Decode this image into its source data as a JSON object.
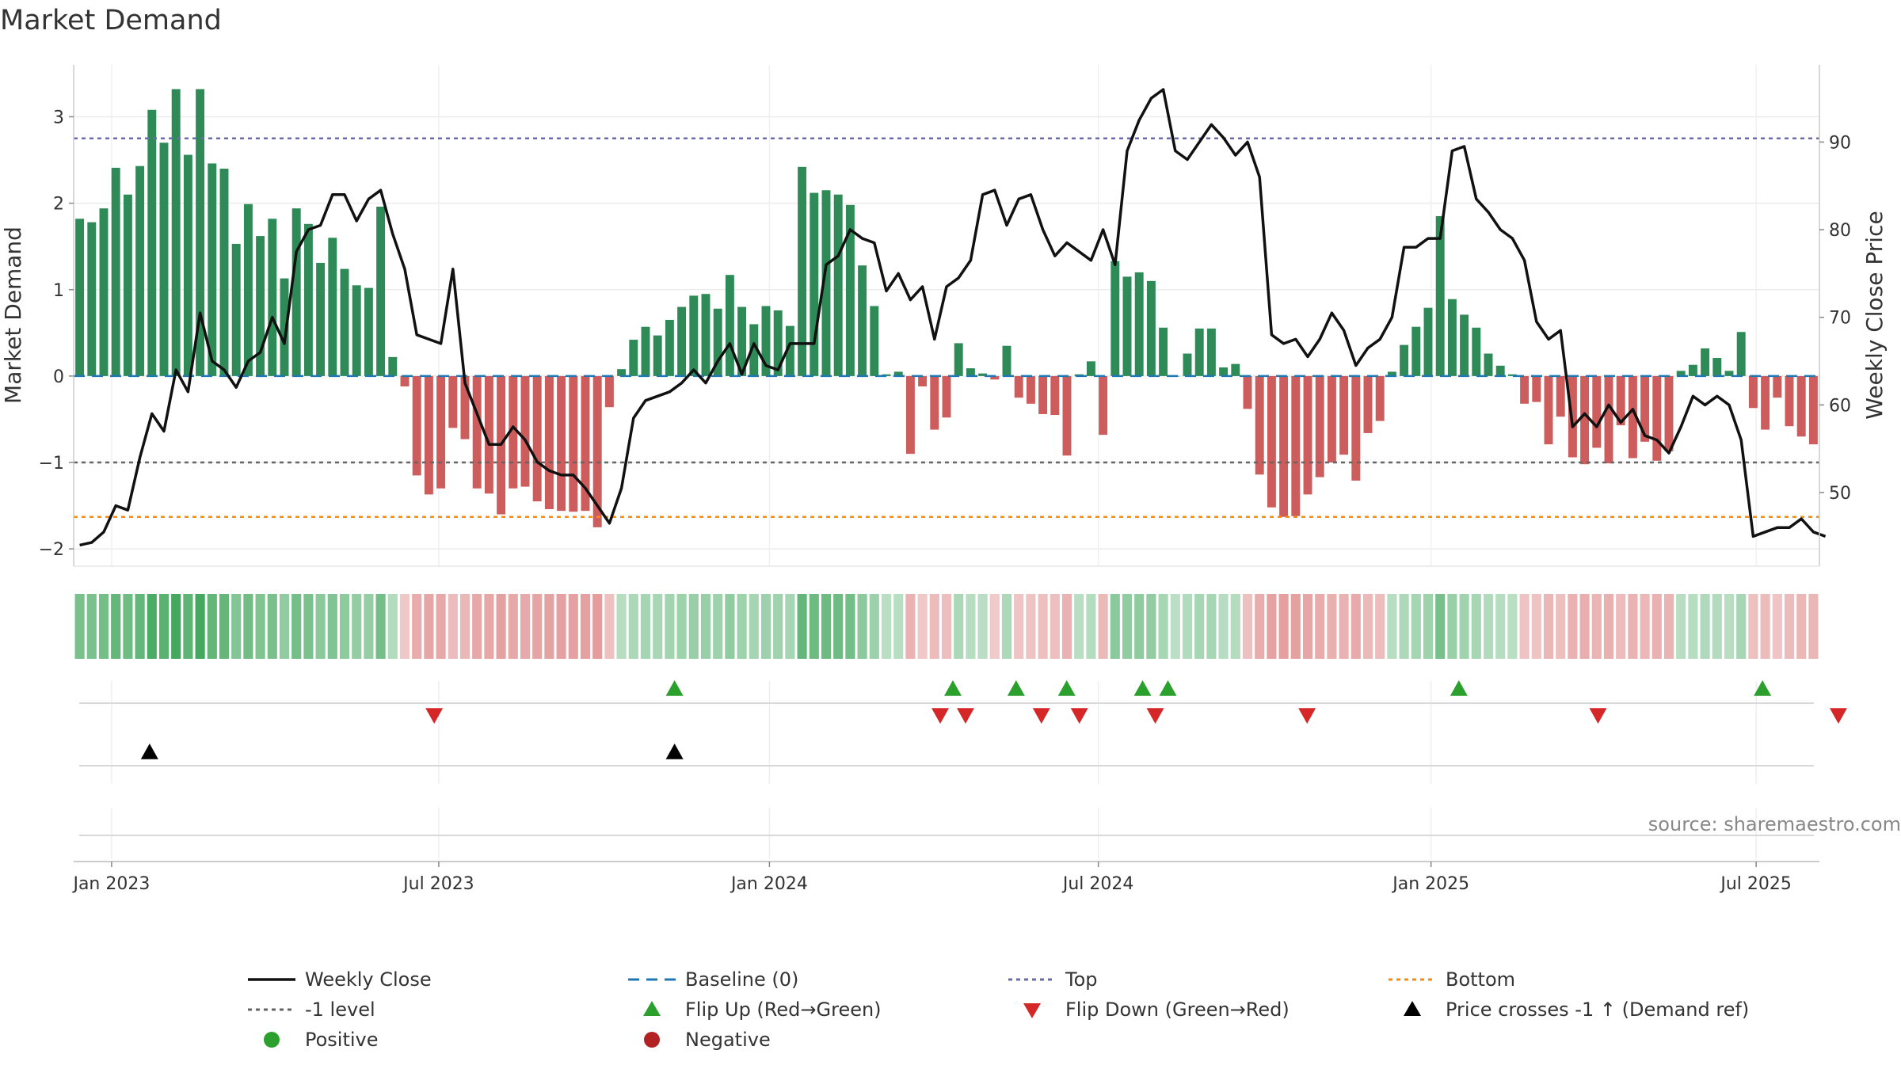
{
  "chart_data": {
    "type": "bar",
    "title": "Market Demand",
    "ylabel": "Market Demand",
    "y2label": "Weekly Close Price",
    "ylim": [
      -2.2,
      3.6
    ],
    "y2lim": [
      41.6,
      98.8
    ],
    "yticks": [
      -2,
      -1,
      0,
      1,
      2,
      3
    ],
    "y2ticks": [
      50,
      60,
      70,
      80,
      90
    ],
    "xlim_weeks": [
      -3,
      135
    ],
    "xticks": [
      {
        "label": "Jan 2023",
        "week": 0
      },
      {
        "label": "Jul 2023",
        "week": 25.86
      },
      {
        "label": "Jan 2024",
        "week": 52
      },
      {
        "label": "Jul 2024",
        "week": 78
      },
      {
        "label": "Jan 2025",
        "week": 104.3
      },
      {
        "label": "Jul 2025",
        "week": 130
      }
    ],
    "levels": {
      "top": 2.75,
      "minus_one": -1,
      "bottom": -1.63,
      "baseline": 0
    },
    "demand": [
      1.82,
      1.78,
      1.94,
      2.41,
      2.1,
      2.43,
      3.08,
      2.7,
      3.32,
      2.56,
      3.32,
      2.46,
      2.4,
      1.53,
      1.99,
      1.62,
      1.82,
      1.13,
      1.94,
      1.76,
      1.31,
      1.6,
      1.24,
      1.05,
      1.02,
      1.96,
      0.22,
      -0.12,
      -1.15,
      -1.37,
      -1.3,
      -0.6,
      -0.73,
      -1.3,
      -1.36,
      -1.6,
      -1.3,
      -1.28,
      -1.45,
      -1.54,
      -1.56,
      -1.57,
      -1.56,
      -1.75,
      -0.36,
      0.08,
      0.42,
      0.57,
      0.47,
      0.65,
      0.8,
      0.93,
      0.95,
      0.78,
      1.17,
      0.8,
      0.6,
      0.81,
      0.76,
      0.58,
      2.42,
      2.12,
      2.15,
      2.1,
      1.98,
      1.28,
      0.81,
      0.02,
      0.05,
      -0.9,
      -0.12,
      -0.62,
      -0.48,
      0.38,
      0.09,
      0.03,
      -0.04,
      0.35,
      -0.25,
      -0.32,
      -0.44,
      -0.45,
      -0.92,
      0.02,
      0.17,
      -0.68,
      1.33,
      1.15,
      1.2,
      1.1,
      0.56,
      0.0,
      0.26,
      0.55,
      0.55,
      0.1,
      0.14,
      -0.38,
      -1.14,
      -1.52,
      -1.63,
      -1.62,
      -1.37,
      -1.17,
      -1.0,
      -0.91,
      -1.21,
      -0.66,
      -0.52,
      0.05,
      0.36,
      0.57,
      0.79,
      1.85,
      0.89,
      0.71,
      0.56,
      0.26,
      0.12,
      0.02,
      -0.32,
      -0.3,
      -0.79,
      -0.47,
      -0.94,
      -1.02,
      -0.83,
      -1.01,
      -0.57,
      -0.95,
      -0.76,
      -0.98,
      -0.87,
      0.06,
      0.13,
      0.32,
      0.21,
      0.06,
      0.51,
      -0.37,
      -0.62,
      -0.25,
      -0.58,
      -0.7,
      -0.79
    ],
    "weekly_close": [
      44.0,
      44.3,
      45.5,
      48.5,
      48.0,
      54.0,
      59.0,
      57.0,
      64.0,
      61.5,
      70.5,
      65.0,
      64.0,
      62.0,
      65.0,
      66.0,
      70.0,
      67.0,
      77.5,
      80.0,
      80.5,
      84.0,
      84.0,
      81.0,
      83.5,
      84.5,
      79.5,
      75.5,
      68.0,
      67.5,
      67.0,
      75.5,
      62.5,
      59.0,
      55.5,
      55.5,
      57.5,
      56.0,
      53.5,
      52.5,
      52.0,
      52.0,
      50.5,
      48.5,
      46.5,
      50.5,
      58.5,
      60.5,
      61.0,
      61.5,
      62.5,
      64.0,
      62.5,
      65.0,
      67.0,
      63.5,
      67.0,
      64.5,
      64.0,
      67.0,
      67.0,
      67.0,
      76.0,
      77.0,
      80.0,
      79.0,
      78.5,
      73.0,
      75.0,
      72.0,
      73.5,
      67.5,
      73.5,
      74.5,
      76.5,
      84.0,
      84.5,
      80.5,
      83.5,
      84.0,
      80.0,
      77.0,
      78.5,
      77.5,
      76.5,
      80.0,
      76.0,
      89.0,
      92.5,
      95.0,
      96.0,
      89.0,
      88.0,
      90.0,
      92.0,
      90.5,
      88.5,
      90.0,
      86.0,
      68.0,
      67.0,
      67.5,
      65.5,
      67.5,
      70.5,
      68.5,
      64.5,
      66.5,
      67.5,
      70.0,
      78.0,
      78.0,
      79.0,
      79.0,
      89.0,
      89.5,
      83.5,
      82.0,
      80.0,
      79.0,
      76.5,
      69.5,
      67.5,
      68.5,
      57.5,
      59.0,
      57.5,
      60.0,
      58.0,
      59.5,
      56.5,
      56.0,
      54.5,
      57.5,
      61.0,
      60.0,
      61.0,
      60.0,
      56.0,
      45.0,
      45.5,
      46.0,
      46.0,
      47.0,
      45.5,
      45.0
    ],
    "flip_up_weeks": [
      44.5,
      66.5,
      71.5,
      75.5,
      81.5,
      83.5,
      106.5,
      130.5
    ],
    "flip_down_weeks": [
      25.5,
      65.5,
      67.5,
      73.5,
      76.5,
      82.5,
      94.5,
      117.5,
      136.5
    ],
    "price_cross_weeks": [
      3.0,
      44.5
    ],
    "legend": {
      "weekly_close": "Weekly Close",
      "baseline": "Baseline (0)",
      "top": "Top",
      "bottom": "Bottom",
      "minus_one": "-1 level",
      "flip_up": "Flip Up (Red→Green)",
      "flip_down": "Flip Down (Green→Red)",
      "price_cross": "Price crosses -1 ↑ (Demand ref)",
      "positive": "Positive",
      "negative": "Negative"
    },
    "source": "source: sharemaestro.com"
  },
  "colors": {
    "positive_bar": "#2e8b57",
    "negative_bar": "#cd5c5c",
    "price_line": "#111111",
    "baseline": "#1f77b4",
    "top_line": "#6a6ab0",
    "minus_one_line": "#666666",
    "bottom_line": "#ff8c00",
    "flip_up": "#2ca02c",
    "flip_down": "#d62728",
    "price_cross": "#000000",
    "positive_dot": "#2ca02c",
    "negative_dot": "#b22222"
  }
}
